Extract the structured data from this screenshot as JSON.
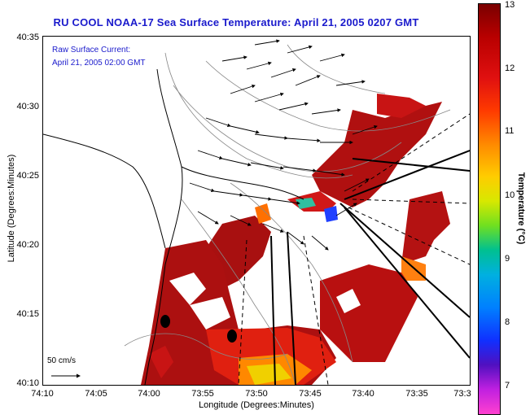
{
  "title": "RU COOL  NOAA-17  Sea Surface Temperature:  April 21, 2005 0207 GMT",
  "legend": {
    "line1": "Raw Surface Current:",
    "line2": "April 21, 2005 02:00 GMT"
  },
  "scale_arrow_label": "50 cm/s",
  "axes": {
    "xlabel": "Longitude (Degrees:Minutes)",
    "ylabel": "Latitude (Degrees:Minutes)",
    "xticks": [
      "74:10",
      "74:05",
      "74:00",
      "73:55",
      "73:50",
      "73:45",
      "73:40",
      "73:35",
      "73:3"
    ],
    "yticks": [
      "40:35",
      "40:30",
      "40:25",
      "40:20",
      "40:15",
      "40:10"
    ]
  },
  "colorbar": {
    "label": "Temperature (°C)",
    "ticks": [
      "13",
      "12",
      "11",
      "10",
      "9",
      "8",
      "7"
    ]
  }
}
